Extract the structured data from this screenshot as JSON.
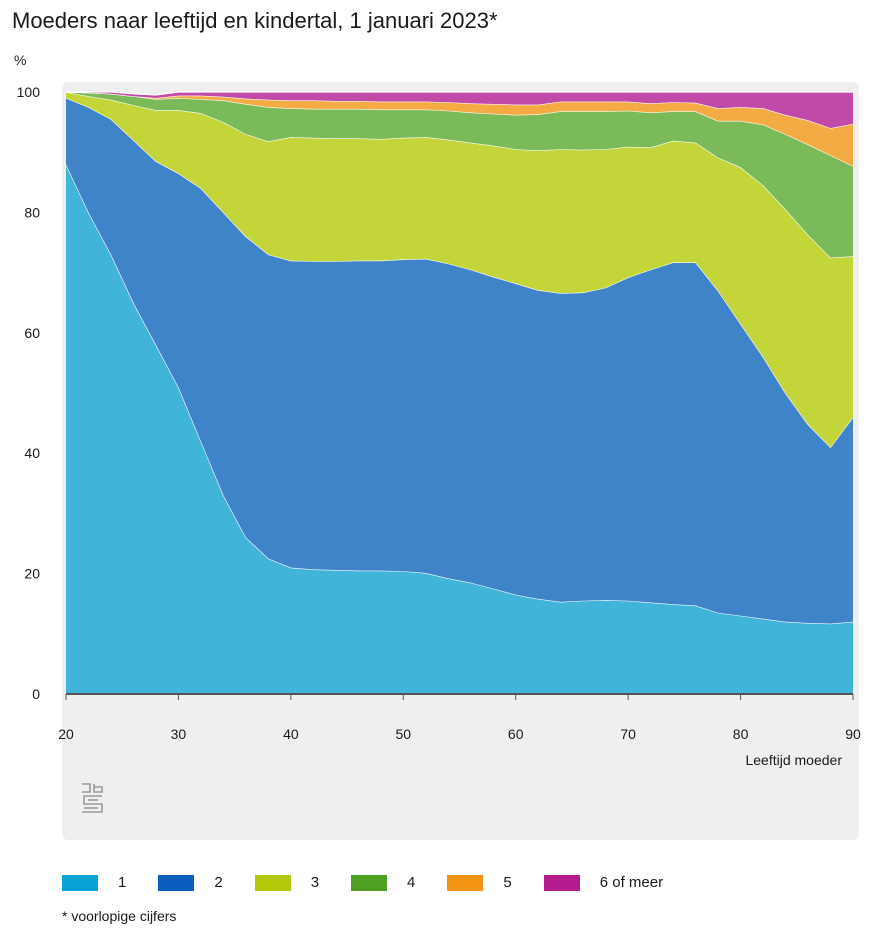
{
  "header": {
    "title": "Moeders naar leeftijd en kindertal, 1 januari 2023*",
    "unit": "%"
  },
  "footnote": "* voorlopige cijfers",
  "logo_icon": "cbs-logo-icon",
  "chart_data": {
    "type": "area",
    "stacked": true,
    "xlabel": "Leeftijd moeder",
    "ylabel": "%",
    "xlim": [
      20,
      90
    ],
    "ylim": [
      0,
      100
    ],
    "xticks": [
      20,
      30,
      40,
      50,
      60,
      70,
      80,
      90
    ],
    "yticks": [
      0,
      20,
      40,
      60,
      80,
      100
    ],
    "grid": false,
    "legend_position": "bottom",
    "x": [
      20,
      22,
      24,
      26,
      28,
      30,
      32,
      34,
      36,
      38,
      40,
      42,
      44,
      46,
      48,
      50,
      52,
      54,
      56,
      58,
      60,
      62,
      64,
      66,
      68,
      70,
      72,
      74,
      76,
      78,
      80,
      82,
      84,
      86,
      88,
      90
    ],
    "series": [
      {
        "name": "1",
        "color": "#40b4d9",
        "values": [
          88,
          80,
          73,
          65,
          58,
          51,
          42,
          33,
          26,
          22.5,
          21,
          20.7,
          20.6,
          20.5,
          20.5,
          20.4,
          20.1,
          19.2,
          18.5,
          17.5,
          16.5,
          15.8,
          15.3,
          15.5,
          15.6,
          15.5,
          15.2,
          14.9,
          14.7,
          13.5,
          13,
          12.5,
          12,
          11.8,
          11.7,
          12
        ]
      },
      {
        "name": "2",
        "color": "#3f83c9",
        "values": [
          11,
          17.5,
          22.5,
          27,
          30.5,
          35.5,
          42,
          47,
          50,
          50.5,
          51,
          51.2,
          51.3,
          51.5,
          51.5,
          51.8,
          52.2,
          52.3,
          52,
          51.8,
          51.7,
          51.3,
          51.3,
          51.2,
          51.9,
          53.7,
          55.3,
          56.8,
          57,
          53.5,
          48.5,
          43.5,
          38,
          33,
          29.3,
          34
        ]
      },
      {
        "name": "3",
        "color": "#c4d53a",
        "values": [
          1,
          1.8,
          3.2,
          5.8,
          8.5,
          10.5,
          12.5,
          15,
          17,
          18.8,
          20.5,
          20.5,
          20.4,
          20.3,
          20.2,
          20.2,
          20.2,
          20.6,
          21.1,
          21.8,
          22.3,
          23.2,
          23.9,
          23.7,
          23,
          21.7,
          20.3,
          20.2,
          19.9,
          22.1,
          26,
          28.5,
          30.5,
          31.5,
          31.5,
          26.7
        ]
      },
      {
        "name": "4",
        "color": "#7bba58",
        "values": [
          0,
          0.6,
          1,
          1.5,
          1.8,
          2,
          2.3,
          3.6,
          5,
          5.7,
          4.8,
          4.8,
          4.9,
          4.9,
          4.9,
          4.7,
          4.6,
          4.8,
          5,
          5.3,
          5.7,
          6,
          6.3,
          6.4,
          6.3,
          6,
          5.8,
          4.9,
          5.2,
          6.1,
          7.7,
          10.1,
          12.5,
          15,
          17,
          15
        ]
      },
      {
        "name": "5",
        "color": "#f5ab44",
        "values": [
          0,
          0,
          0,
          0,
          0.2,
          0.4,
          0.6,
          0.6,
          0.9,
          1.2,
          1.3,
          1.4,
          1.3,
          1.3,
          1.3,
          1.3,
          1.3,
          1.4,
          1.5,
          1.6,
          1.7,
          1.6,
          1.6,
          1.6,
          1.6,
          1.5,
          1.5,
          1.5,
          1.4,
          2.1,
          2.3,
          2.7,
          3.2,
          4,
          4.5,
          7
        ]
      },
      {
        "name": "6 of meer",
        "color": "#c14aa8",
        "values": [
          0,
          0.1,
          0.3,
          0.4,
          0.5,
          0.6,
          0.6,
          0.8,
          1.1,
          1.3,
          1.4,
          1.4,
          1.5,
          1.5,
          1.6,
          1.6,
          1.6,
          1.7,
          1.9,
          2,
          2.1,
          2.1,
          1.6,
          1.6,
          1.6,
          1.6,
          1.9,
          1.7,
          1.8,
          2.7,
          2.5,
          2.7,
          3.8,
          4.7,
          6,
          5.3
        ]
      }
    ]
  },
  "legend_colors": {
    "1": "#09a2d4",
    "2": "#0a5ebd",
    "3": "#b4c80a",
    "4": "#4fa221",
    "5": "#f39314",
    "6 of meer": "#b31a8c"
  }
}
